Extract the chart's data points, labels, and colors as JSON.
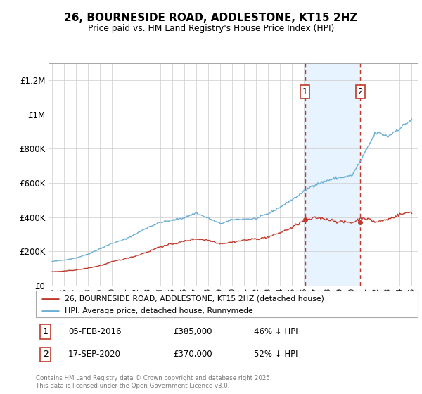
{
  "title": "26, BOURNESIDE ROAD, ADDLESTONE, KT15 2HZ",
  "subtitle": "Price paid vs. HM Land Registry's House Price Index (HPI)",
  "legend_label_red": "26, BOURNESIDE ROAD, ADDLESTONE, KT15 2HZ (detached house)",
  "legend_label_blue": "HPI: Average price, detached house, Runnymede",
  "annotation1_label": "1",
  "annotation1_date": "05-FEB-2016",
  "annotation1_price": "£385,000",
  "annotation1_hpi": "46% ↓ HPI",
  "annotation2_label": "2",
  "annotation2_date": "17-SEP-2020",
  "annotation2_price": "£370,000",
  "annotation2_hpi": "52% ↓ HPI",
  "footer": "Contains HM Land Registry data © Crown copyright and database right 2025.\nThis data is licensed under the Open Government Licence v3.0.",
  "ylim_max": 1300000,
  "hpi_color": "#6baed6",
  "price_color": "#c0392b",
  "vline_color": "#c0392b",
  "shade_color": "#ddeeff",
  "sale1_year_float": 2016.09,
  "sale1_value": 385000,
  "sale2_year_float": 2020.71,
  "sale2_value": 370000,
  "xtick_years": [
    1995,
    1996,
    1997,
    1998,
    1999,
    2000,
    2001,
    2002,
    2003,
    2004,
    2005,
    2006,
    2007,
    2008,
    2009,
    2010,
    2011,
    2012,
    2013,
    2014,
    2015,
    2016,
    2017,
    2018,
    2019,
    2020,
    2021,
    2022,
    2023,
    2024,
    2025
  ],
  "hpi_annual": [
    140000,
    148000,
    162000,
    185000,
    218000,
    250000,
    270000,
    305000,
    345000,
    375000,
    385000,
    400000,
    430000,
    400000,
    365000,
    385000,
    390000,
    393000,
    415000,
    455000,
    498000,
    545000,
    590000,
    615000,
    630000,
    640000,
    755000,
    880000,
    855000,
    910000,
    960000
  ],
  "price_annual": [
    80000,
    83000,
    90000,
    100000,
    115000,
    135000,
    150000,
    170000,
    195000,
    225000,
    240000,
    255000,
    270000,
    265000,
    248000,
    260000,
    272000,
    278000,
    290000,
    315000,
    345000,
    385000,
    395000,
    388000,
    378000,
    370000,
    405000,
    378000,
    392000,
    425000,
    438000
  ]
}
